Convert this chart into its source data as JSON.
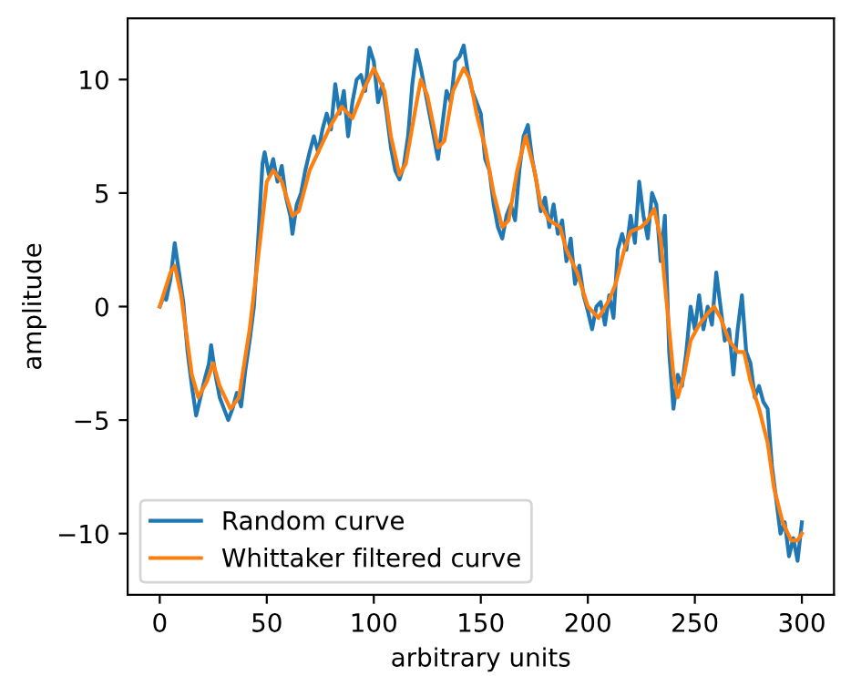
{
  "chart_data": {
    "type": "line",
    "xlabel": "arbitrary units",
    "ylabel": "amplitude",
    "xlim": [
      -15,
      315
    ],
    "xticks": [
      0,
      50,
      100,
      150,
      200,
      250,
      300
    ],
    "ylim": [
      -12.7,
      12.7
    ],
    "yticks": [
      {
        "value": -10,
        "label": "−10"
      },
      {
        "value": -5,
        "label": "−5"
      },
      0,
      5,
      10
    ],
    "grid": false,
    "legend": "bottom left",
    "series": [
      {
        "name": "Random curve",
        "color": "#1f77b4",
        "x": [
          0,
          2,
          3,
          5,
          7,
          9,
          11,
          13,
          15,
          17,
          19,
          21,
          23,
          24,
          26,
          28,
          30,
          32,
          34,
          36,
          38,
          40,
          42,
          44,
          46,
          48,
          49,
          51,
          53,
          55,
          57,
          59,
          61,
          62,
          64,
          66,
          68,
          70,
          72,
          74,
          76,
          78,
          80,
          82,
          84,
          86,
          88,
          90,
          92,
          94,
          96,
          98,
          100,
          102,
          104,
          106,
          108,
          110,
          112,
          114,
          116,
          118,
          120,
          122,
          124,
          126,
          128,
          130,
          132,
          134,
          136,
          138,
          140,
          142,
          144,
          146,
          148,
          150,
          152,
          154,
          156,
          158,
          160,
          162,
          164,
          166,
          168,
          170,
          172,
          174,
          176,
          178,
          180,
          182,
          184,
          186,
          188,
          190,
          192,
          194,
          196,
          198,
          200,
          202,
          204,
          206,
          208,
          210,
          212,
          214,
          216,
          218,
          220,
          222,
          224,
          226,
          228,
          230,
          232,
          234,
          236,
          238,
          240,
          242,
          244,
          246,
          248,
          250,
          252,
          254,
          256,
          258,
          260,
          262,
          264,
          266,
          268,
          270,
          272,
          274,
          276,
          278,
          280,
          282,
          284,
          286,
          288,
          290,
          292,
          294,
          296,
          298,
          300
        ],
        "values": [
          0,
          0.5,
          0.3,
          1.2,
          2.8,
          1.5,
          0.2,
          -2,
          -3.5,
          -4.8,
          -4,
          -3.2,
          -2.5,
          -1.7,
          -3,
          -4,
          -4.5,
          -5,
          -4.5,
          -3.8,
          -4.4,
          -2.8,
          -1.5,
          0,
          3,
          6.3,
          6.8,
          5.8,
          6.5,
          5.5,
          6.2,
          4.8,
          4,
          3.2,
          4.5,
          5,
          6,
          6.8,
          7.5,
          6.8,
          7.8,
          8.5,
          7.8,
          9.8,
          8.5,
          9.5,
          7.5,
          9,
          10,
          10.2,
          9.5,
          11.4,
          10.8,
          9,
          9.8,
          8.5,
          7,
          6,
          5.6,
          6.2,
          7.5,
          9.8,
          11.3,
          10.5,
          9.5,
          8.5,
          7.5,
          6.5,
          8,
          9.5,
          9,
          10.8,
          11,
          11.5,
          10.3,
          9.5,
          9,
          8.5,
          6.5,
          6,
          4.5,
          3.5,
          3,
          4,
          4.5,
          3.8,
          6,
          7.5,
          8,
          6.5,
          5.5,
          4.2,
          4.8,
          3.5,
          4.5,
          3.2,
          3.8,
          2,
          3,
          1,
          1.8,
          0.5,
          -0.2,
          -1,
          0,
          0.2,
          -0.8,
          0.5,
          -0.5,
          2.5,
          3.2,
          2.5,
          4,
          2.8,
          5.5,
          4,
          3,
          5,
          4.5,
          2,
          4,
          -2,
          -4.5,
          -3,
          -3.5,
          -2,
          0,
          -1,
          0.5,
          -1,
          0,
          -0.8,
          1.5,
          0,
          -1.5,
          -1,
          -3,
          -1,
          0.5,
          -2,
          -2.5,
          -4,
          -3.5,
          -4.2,
          -4.5,
          -7,
          -8.5,
          -10,
          -9.5,
          -11,
          -10.2,
          -11.2,
          -9.5
        ]
      },
      {
        "name": "Whittaker filtered curve",
        "color": "#ff7f0e",
        "x": [
          0,
          5,
          7,
          10,
          15,
          18,
          22,
          25,
          28,
          33,
          37,
          42,
          47,
          50,
          53,
          57,
          62,
          65,
          70,
          75,
          80,
          85,
          90,
          95,
          100,
          105,
          108,
          112,
          115,
          120,
          122,
          125,
          130,
          133,
          137,
          142,
          145,
          148,
          152,
          156,
          160,
          163,
          167,
          171,
          175,
          178,
          182,
          187,
          190,
          195,
          200,
          205,
          210,
          213,
          217,
          220,
          225,
          228,
          231,
          234,
          237,
          240,
          242,
          245,
          248,
          252,
          256,
          259,
          262,
          266,
          270,
          273,
          276,
          280,
          284,
          287,
          291,
          295,
          298,
          300
        ],
        "values": [
          0,
          1.5,
          1.8,
          0.5,
          -3,
          -4,
          -3.3,
          -2.5,
          -3.5,
          -4.5,
          -4,
          -1,
          3,
          5.5,
          6,
          5.5,
          4,
          4.2,
          6,
          7,
          8,
          8.8,
          8.3,
          9.5,
          10.5,
          9.5,
          7.5,
          5.8,
          6.3,
          9,
          10,
          9.3,
          7,
          7.3,
          9.5,
          10.5,
          10,
          8.5,
          7,
          5,
          3.5,
          3.8,
          6,
          7.5,
          6,
          4.5,
          3.8,
          3.5,
          2.5,
          1.5,
          0,
          -0.5,
          0.3,
          1,
          2.5,
          3.3,
          3.5,
          3.8,
          4.3,
          3,
          0,
          -3,
          -4,
          -3,
          -1.5,
          -0.8,
          -0.3,
          0,
          -0.5,
          -1.5,
          -2,
          -2,
          -3.3,
          -4.5,
          -6,
          -8,
          -9.5,
          -10.3,
          -10.3,
          -10
        ]
      }
    ]
  }
}
